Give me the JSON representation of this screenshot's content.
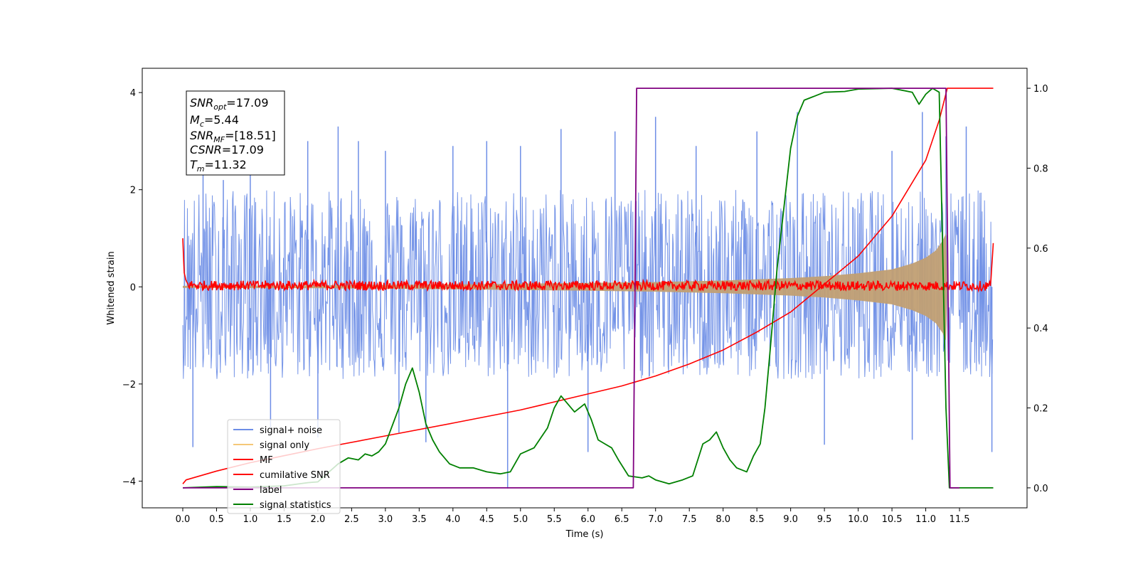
{
  "chart_data": {
    "type": "line",
    "xlabel": "Time (s)",
    "ylabel": "Whitened strain",
    "xlim": [
      -0.6,
      12.5
    ],
    "ylim": [
      -4.55,
      4.5
    ],
    "ylim_right": [
      -0.05,
      1.05
    ],
    "x_ticks": [
      0.0,
      0.5,
      1.0,
      1.5,
      2.0,
      2.5,
      3.0,
      3.5,
      4.0,
      4.5,
      5.0,
      5.5,
      6.0,
      6.5,
      7.0,
      7.5,
      8.0,
      8.5,
      9.0,
      9.5,
      10.0,
      10.5,
      11.0,
      11.5
    ],
    "x_tick_labels": [
      "0.0",
      "0.5",
      "1.0",
      "1.5",
      "2.0",
      "2.5",
      "3.0",
      "3.5",
      "4.0",
      "4.5",
      "5.0",
      "5.5",
      "6.0",
      "6.5",
      "7.0",
      "7.5",
      "8.0",
      "8.5",
      "9.0",
      "9.5",
      "10.0",
      "10.5",
      "11.0",
      "11.5"
    ],
    "y_ticks": [
      -4,
      -2,
      0,
      2,
      4
    ],
    "y_tick_labels": [
      "−4",
      "−2",
      "0",
      "2",
      "4"
    ],
    "y_ticks_right": [
      0.0,
      0.2,
      0.4,
      0.6,
      0.8,
      1.0
    ],
    "y_tick_labels_right": [
      "0.0",
      "0.2",
      "0.4",
      "0.6",
      "0.8",
      "1.0"
    ],
    "grid": false,
    "legend_placement": "lower-left",
    "annotations": {
      "snr_opt": {
        "base": "SNR",
        "sub": "opt",
        "value": "=17.09"
      },
      "mc": {
        "base": "M",
        "sub": "c",
        "value": "=5.44"
      },
      "snr_mf": {
        "base": "SNR",
        "sub": "MF",
        "value": "=[18.51]"
      },
      "csnr": {
        "base": "CSNR",
        "sub": "",
        "value": "=17.09"
      },
      "tm": {
        "base": "T",
        "sub": "m",
        "value": "=11.32"
      }
    },
    "series": [
      {
        "name": "signal+ noise",
        "color": "#6e8ee6",
        "axis": "left",
        "noise_band": [
          -1.9,
          2.0
        ],
        "spike_points": [
          [
            0.15,
            -3.3
          ],
          [
            0.3,
            2.4
          ],
          [
            0.6,
            2.2
          ],
          [
            1.0,
            3.1
          ],
          [
            1.3,
            -2.9
          ],
          [
            1.85,
            3.0
          ],
          [
            2.0,
            -3.1
          ],
          [
            2.3,
            3.3
          ],
          [
            2.6,
            3.0
          ],
          [
            3.0,
            2.8
          ],
          [
            3.2,
            -3.0
          ],
          [
            3.6,
            -3.2
          ],
          [
            4.0,
            2.9
          ],
          [
            4.5,
            3.0
          ],
          [
            4.81,
            -4.15
          ],
          [
            5.0,
            2.9
          ],
          [
            5.6,
            3.25
          ],
          [
            6.0,
            -3.4
          ],
          [
            6.4,
            3.2
          ],
          [
            7.0,
            3.5
          ],
          [
            7.6,
            2.9
          ],
          [
            8.5,
            3.2
          ],
          [
            9.1,
            3.6
          ],
          [
            9.5,
            -3.25
          ],
          [
            10.5,
            2.8
          ],
          [
            10.8,
            -3.15
          ],
          [
            10.95,
            3.6
          ],
          [
            11.3,
            3.1
          ],
          [
            11.6,
            3.3
          ],
          [
            11.98,
            -3.4
          ]
        ]
      },
      {
        "name": "signal only",
        "color": "#f5c878",
        "axis": "left",
        "envelope": [
          [
            0.0,
            0.02
          ],
          [
            2.0,
            0.03
          ],
          [
            4.0,
            0.05
          ],
          [
            6.0,
            0.08
          ],
          [
            7.0,
            0.1
          ],
          [
            8.0,
            0.13
          ],
          [
            9.0,
            0.18
          ],
          [
            9.5,
            0.22
          ],
          [
            10.0,
            0.28
          ],
          [
            10.5,
            0.36
          ],
          [
            10.8,
            0.48
          ],
          [
            11.0,
            0.6
          ],
          [
            11.15,
            0.75
          ],
          [
            11.25,
            0.95
          ],
          [
            11.3,
            1.1
          ],
          [
            11.32,
            0.0
          ]
        ]
      },
      {
        "name": "MF",
        "color": "#ff0000",
        "axis": "left",
        "points": [
          [
            0.0,
            1.0
          ],
          [
            0.02,
            0.3
          ],
          [
            0.06,
            0.05
          ],
          [
            0.2,
            0.03
          ],
          [
            11.96,
            0.02
          ],
          [
            12.0,
            0.9
          ]
        ],
        "jitter": 0.1
      },
      {
        "name": "cumilative SNR",
        "color": "#ff0000",
        "axis": "right",
        "points": [
          [
            0.0,
            0.01
          ],
          [
            0.05,
            0.02
          ],
          [
            0.5,
            0.042
          ],
          [
            1.0,
            0.063
          ],
          [
            2.0,
            0.098
          ],
          [
            3.0,
            0.13
          ],
          [
            4.0,
            0.162
          ],
          [
            5.0,
            0.195
          ],
          [
            6.0,
            0.235
          ],
          [
            6.5,
            0.255
          ],
          [
            7.0,
            0.28
          ],
          [
            7.5,
            0.31
          ],
          [
            8.0,
            0.345
          ],
          [
            8.5,
            0.39
          ],
          [
            9.0,
            0.44
          ],
          [
            9.5,
            0.51
          ],
          [
            10.0,
            0.58
          ],
          [
            10.5,
            0.68
          ],
          [
            11.0,
            0.82
          ],
          [
            11.2,
            0.92
          ],
          [
            11.32,
            1.0
          ],
          [
            12.0,
            1.0
          ]
        ]
      },
      {
        "name": "label",
        "color": "#800080",
        "axis": "right",
        "points": [
          [
            0.0,
            0.0
          ],
          [
            6.67,
            0.0
          ],
          [
            6.72,
            1.0
          ],
          [
            11.3,
            1.0
          ],
          [
            11.36,
            0.0
          ],
          [
            11.5,
            0.0
          ]
        ]
      },
      {
        "name": "signal statistics",
        "color": "#008000",
        "axis": "right",
        "points": [
          [
            0.0,
            0.0
          ],
          [
            0.5,
            0.003
          ],
          [
            1.0,
            0.002
          ],
          [
            1.5,
            0.005
          ],
          [
            1.85,
            0.013
          ],
          [
            2.0,
            0.015
          ],
          [
            2.3,
            0.06
          ],
          [
            2.45,
            0.075
          ],
          [
            2.6,
            0.07
          ],
          [
            2.7,
            0.085
          ],
          [
            2.8,
            0.08
          ],
          [
            2.9,
            0.09
          ],
          [
            3.0,
            0.11
          ],
          [
            3.2,
            0.2
          ],
          [
            3.3,
            0.26
          ],
          [
            3.4,
            0.3
          ],
          [
            3.5,
            0.24
          ],
          [
            3.6,
            0.16
          ],
          [
            3.7,
            0.12
          ],
          [
            3.8,
            0.09
          ],
          [
            3.95,
            0.06
          ],
          [
            4.1,
            0.05
          ],
          [
            4.3,
            0.05
          ],
          [
            4.5,
            0.04
          ],
          [
            4.7,
            0.035
          ],
          [
            4.85,
            0.04
          ],
          [
            5.0,
            0.085
          ],
          [
            5.2,
            0.1
          ],
          [
            5.4,
            0.15
          ],
          [
            5.5,
            0.2
          ],
          [
            5.6,
            0.23
          ],
          [
            5.7,
            0.21
          ],
          [
            5.8,
            0.19
          ],
          [
            5.95,
            0.21
          ],
          [
            6.05,
            0.17
          ],
          [
            6.15,
            0.12
          ],
          [
            6.25,
            0.11
          ],
          [
            6.35,
            0.1
          ],
          [
            6.45,
            0.07
          ],
          [
            6.6,
            0.03
          ],
          [
            6.8,
            0.025
          ],
          [
            6.9,
            0.03
          ],
          [
            7.0,
            0.02
          ],
          [
            7.2,
            0.01
          ],
          [
            7.4,
            0.02
          ],
          [
            7.55,
            0.03
          ],
          [
            7.7,
            0.11
          ],
          [
            7.8,
            0.12
          ],
          [
            7.9,
            0.14
          ],
          [
            8.0,
            0.1
          ],
          [
            8.1,
            0.07
          ],
          [
            8.2,
            0.05
          ],
          [
            8.35,
            0.04
          ],
          [
            8.45,
            0.08
          ],
          [
            8.55,
            0.11
          ],
          [
            8.62,
            0.2
          ],
          [
            8.7,
            0.35
          ],
          [
            8.8,
            0.55
          ],
          [
            8.9,
            0.7
          ],
          [
            9.0,
            0.85
          ],
          [
            9.1,
            0.93
          ],
          [
            9.2,
            0.97
          ],
          [
            9.35,
            0.98
          ],
          [
            9.5,
            0.99
          ],
          [
            9.8,
            0.992
          ],
          [
            10.0,
            0.998
          ],
          [
            10.5,
            1.0
          ],
          [
            10.8,
            0.99
          ],
          [
            10.9,
            0.96
          ],
          [
            11.0,
            0.985
          ],
          [
            11.1,
            1.0
          ],
          [
            11.2,
            0.99
          ],
          [
            11.25,
            0.6
          ],
          [
            11.3,
            0.2
          ],
          [
            11.35,
            0.0
          ],
          [
            12.0,
            0.0
          ]
        ]
      }
    ]
  }
}
